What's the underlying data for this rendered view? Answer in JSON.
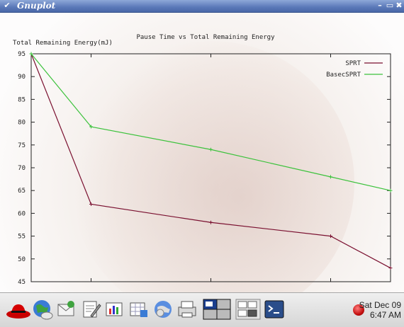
{
  "window": {
    "title": "Gnuplot",
    "menu_glyph": "✔",
    "min": "–",
    "max": "▭",
    "close": "✖"
  },
  "chart_data": {
    "type": "line",
    "title": "Pause Time vs Total Remaining Energy",
    "ylabel": "Total Remaining Energy(mJ)",
    "xlabel": "",
    "x": [
      0,
      10,
      30,
      50,
      60
    ],
    "ylim": [
      45,
      95
    ],
    "y_ticks": [
      "45",
      "50",
      "55",
      "60",
      "65",
      "70",
      "75",
      "80",
      "85",
      "90",
      "95"
    ],
    "series": [
      {
        "name": "SPRT",
        "color": "#7a1030",
        "values": [
          95,
          62,
          58,
          55,
          48
        ]
      },
      {
        "name": "BasecSPRT",
        "color": "#3cc23c",
        "values": [
          95,
          79,
          74,
          68,
          65
        ]
      }
    ],
    "legend": "top-right"
  },
  "taskbar": {
    "clock_day": "Sat Dec 09",
    "clock_time": "6:47 AM",
    "icons": [
      "redhat-icon",
      "browser-icon",
      "email-icon",
      "writer-icon",
      "impress-icon",
      "calc-icon",
      "network-icon",
      "printer-icon",
      "workspace-icon",
      "pager-icon",
      "terminal-icon"
    ]
  }
}
